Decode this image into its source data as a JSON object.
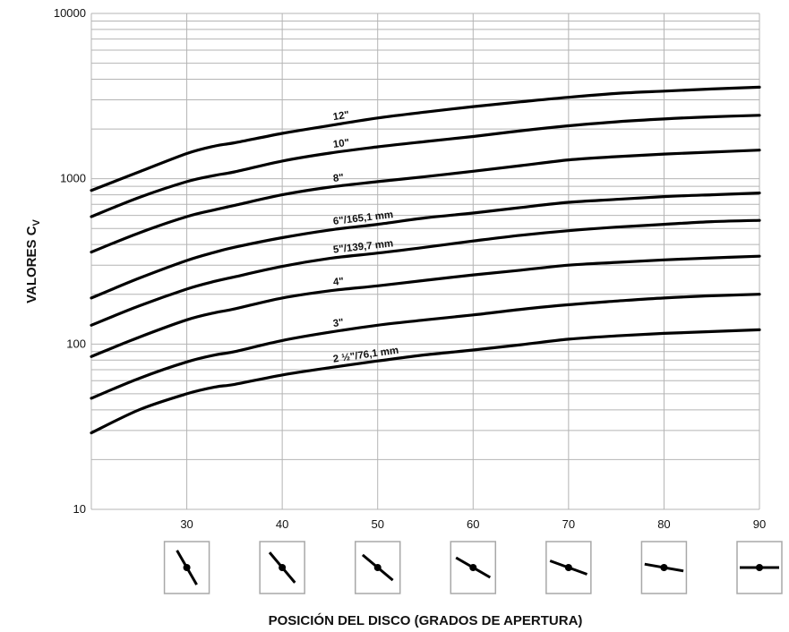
{
  "chart_data": {
    "type": "line",
    "xlabel": "POSICIÓN DEL DISCO (GRADOS DE APERTURA)",
    "ylabel_main": "VALORES C",
    "ylabel_sub": "V",
    "xlim": [
      20,
      90
    ],
    "ylim": [
      10,
      10000
    ],
    "y_scale": "log",
    "x_ticks": [
      {
        "value": 30,
        "label": "30"
      },
      {
        "value": 40,
        "label": "40"
      },
      {
        "value": 50,
        "label": "50"
      },
      {
        "value": 60,
        "label": "60"
      },
      {
        "value": 70,
        "label": "70"
      },
      {
        "value": 80,
        "label": "80"
      },
      {
        "value": 90,
        "label": "90"
      }
    ],
    "y_ticks": [
      {
        "value": 10,
        "label": "10"
      },
      {
        "value": 100,
        "label": "100"
      },
      {
        "value": 1000,
        "label": "1000"
      },
      {
        "value": 10000,
        "label": "10000"
      }
    ],
    "grid": true,
    "x": [
      20,
      25,
      30,
      33,
      35,
      40,
      45,
      50,
      55,
      60,
      65,
      70,
      75,
      80,
      85,
      90
    ],
    "series": [
      {
        "name": "12\"",
        "label_x": 45,
        "values": [
          850,
          1100,
          1420,
          1580,
          1650,
          1880,
          2100,
          2330,
          2530,
          2730,
          2920,
          3110,
          3280,
          3390,
          3490,
          3580
        ]
      },
      {
        "name": "10\"",
        "label_x": 45,
        "values": [
          590,
          770,
          960,
          1050,
          1100,
          1280,
          1430,
          1560,
          1680,
          1800,
          1950,
          2090,
          2210,
          2300,
          2370,
          2420
        ]
      },
      {
        "name": "8\"",
        "label_x": 45,
        "values": [
          360,
          470,
          590,
          650,
          690,
          800,
          890,
          960,
          1030,
          1110,
          1200,
          1300,
          1360,
          1410,
          1450,
          1490
        ]
      },
      {
        "name": "6\"/165,1 mm",
        "label_x": 45,
        "values": [
          190,
          250,
          320,
          360,
          385,
          440,
          490,
          530,
          580,
          620,
          670,
          720,
          750,
          780,
          800,
          820
        ]
      },
      {
        "name": "5\"/139,7 mm",
        "label_x": 45,
        "values": [
          130,
          170,
          215,
          240,
          255,
          295,
          330,
          355,
          385,
          420,
          455,
          485,
          510,
          530,
          550,
          560
        ]
      },
      {
        "name": "4\"",
        "label_x": 45,
        "values": [
          84,
          110,
          140,
          155,
          163,
          190,
          210,
          225,
          243,
          262,
          280,
          300,
          312,
          323,
          332,
          340
        ]
      },
      {
        "name": "3\"",
        "label_x": 45,
        "values": [
          47,
          62,
          78,
          86,
          90,
          105,
          118,
          130,
          140,
          150,
          162,
          173,
          182,
          190,
          196,
          200
        ]
      },
      {
        "name": "2 ½\"/76,1 mm",
        "label_x": 45,
        "values": [
          29,
          40,
          50,
          55,
          57,
          65,
          72,
          79,
          86,
          92,
          99,
          107,
          112,
          116,
          119,
          122
        ]
      }
    ],
    "disc_positions": [
      30,
      40,
      50,
      60,
      70,
      80,
      90
    ]
  }
}
